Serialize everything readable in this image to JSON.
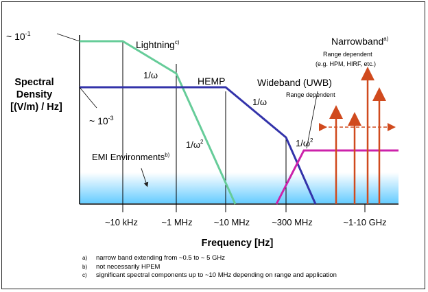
{
  "labels": {
    "y_axis_line1": "Spectral",
    "y_axis_line2": "Density",
    "y_axis_line3": "[(V/m) / Hz]",
    "x_axis": "Frequency [Hz]",
    "level_high_base": "~ 10",
    "level_high_exp": "-1",
    "level_low_base": "~ 10",
    "level_low_exp": "-3",
    "lightning": "Lightning",
    "lightning_note": "c)",
    "hemp": "HEMP",
    "one_over_omega": "1/ω",
    "one_over_omega_sq_base": "1/ω",
    "one_over_omega_sq_exp": "2",
    "wideband": "Wideband (UWB)",
    "wideband_sub": "Range dependent",
    "narrowband": "Narrowband",
    "narrowband_note": "a)",
    "narrowband_sub1": "Range dependent",
    "narrowband_sub2": "(e.g. HPM, HIRF, etc.)",
    "emi": "EMI Environments",
    "emi_note": "b)"
  },
  "x_ticks": [
    "~10 kHz",
    "~1 MHz",
    "~10 MHz",
    "~300 MHz",
    "~1-10 GHz"
  ],
  "footnotes": [
    {
      "key": "a)",
      "text": "narrow band extending from ~0.5 to ~ 5 GHz"
    },
    {
      "key": "b)",
      "text": "not necessarily HPEM"
    },
    {
      "key": "c)",
      "text": "significant spectral components up to ~10 MHz depending on range and application"
    }
  ],
  "colors": {
    "lightning": "#66cc99",
    "hemp": "#3333aa",
    "uwb": "#cc22aa",
    "narrowband": "#d04a1e",
    "emi_band": "#66ccff"
  }
}
